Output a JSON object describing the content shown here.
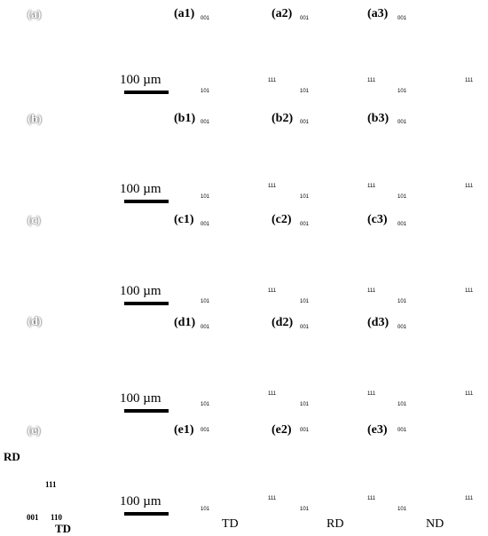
{
  "map_panels": [
    {
      "label": "(a)",
      "scale": "100 µm"
    },
    {
      "label": "(b)",
      "scale": "100 µm"
    },
    {
      "label": "(c)",
      "scale": "100 µm"
    },
    {
      "label": "(d)",
      "scale": "100 µm"
    },
    {
      "label": "(e)",
      "scale": "100 µm"
    }
  ],
  "pole_rows": [
    [
      "(a1)",
      "(a2)",
      "(a3)"
    ],
    [
      "(b1)",
      "(b2)",
      "(b3)"
    ],
    [
      "(c1)",
      "(c2)",
      "(c3)"
    ],
    [
      "(d1)",
      "(d2)",
      "(d3)"
    ],
    [
      "(e1)",
      "(e2)",
      "(e3)"
    ]
  ],
  "corner_labels": {
    "top": "001",
    "left": "101",
    "right": "111"
  },
  "column_labels": [
    "TD",
    "RD",
    "ND"
  ],
  "legend": {
    "axis_vertical": "RD",
    "axis_horizontal": "TD",
    "tri_top": "111",
    "tri_left": "001",
    "tri_right": "110"
  },
  "colors": {
    "map_green": "#3fd94a",
    "map_blue": "#3a52d8",
    "ipf_blue": "#1f3ed6",
    "ipf_green": "#66d22f",
    "ipf_yellow": "#e8e22a",
    "ipf_red": "#d9331c"
  }
}
